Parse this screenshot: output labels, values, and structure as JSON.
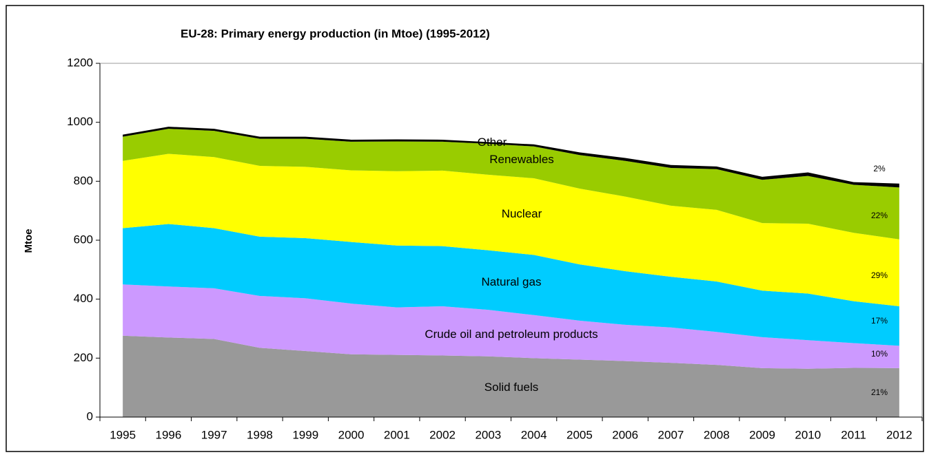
{
  "chart_data": {
    "type": "stacked-area",
    "title": "EU-28: Primary energy production (in Mtoe) (1995-2012)",
    "y_label": "Mtoe",
    "categories": [
      "1995",
      "1996",
      "1997",
      "1998",
      "1999",
      "2000",
      "2001",
      "2002",
      "2003",
      "2004",
      "2005",
      "2006",
      "2007",
      "2008",
      "2009",
      "2010",
      "2011",
      "2012"
    ],
    "ylim": [
      0,
      1200
    ],
    "yticks": [
      0,
      200,
      400,
      600,
      800,
      1000,
      1200
    ],
    "series": [
      {
        "name": "Solid fuels",
        "color": "#999999",
        "share": {
          "value": 21,
          "label": "21%"
        },
        "values": [
          276,
          270,
          265,
          235,
          224,
          213,
          211,
          209,
          206,
          200,
          195,
          190,
          184,
          177,
          166,
          164,
          167,
          166
        ]
      },
      {
        "name": "Crude oil and petroleum products",
        "color": "#cc99ff",
        "share": {
          "value": 10,
          "label": "10%"
        },
        "values": [
          174,
          173,
          172,
          176,
          179,
          172,
          161,
          167,
          158,
          146,
          132,
          123,
          120,
          112,
          105,
          97,
          84,
          76
        ]
      },
      {
        "name": "Natural gas",
        "color": "#00ccff",
        "share": {
          "value": 17,
          "label": "17%"
        },
        "values": [
          191,
          212,
          204,
          201,
          204,
          209,
          210,
          204,
          202,
          204,
          191,
          182,
          172,
          171,
          158,
          158,
          142,
          134
        ]
      },
      {
        "name": "Nuclear",
        "color": "#ffff00",
        "share": {
          "value": 29,
          "label": "29%"
        },
        "values": [
          228,
          238,
          241,
          240,
          242,
          243,
          252,
          256,
          256,
          260,
          257,
          253,
          241,
          243,
          229,
          237,
          232,
          227
        ]
      },
      {
        "name": "Renewables",
        "color": "#99cc00",
        "share": {
          "value": 22,
          "label": "22%"
        },
        "values": [
          82,
          85,
          89,
          92,
          95,
          97,
          101,
          98,
          105,
          108,
          114,
          121,
          128,
          138,
          147,
          162,
          163,
          176
        ]
      },
      {
        "name": "Other",
        "color": "#000000",
        "share": {
          "value": 2,
          "label": "2%"
        },
        "values": [
          7,
          7,
          7,
          7,
          7,
          7,
          7,
          7,
          6,
          7,
          9,
          10,
          10,
          9,
          10,
          12,
          9,
          13
        ]
      }
    ]
  }
}
